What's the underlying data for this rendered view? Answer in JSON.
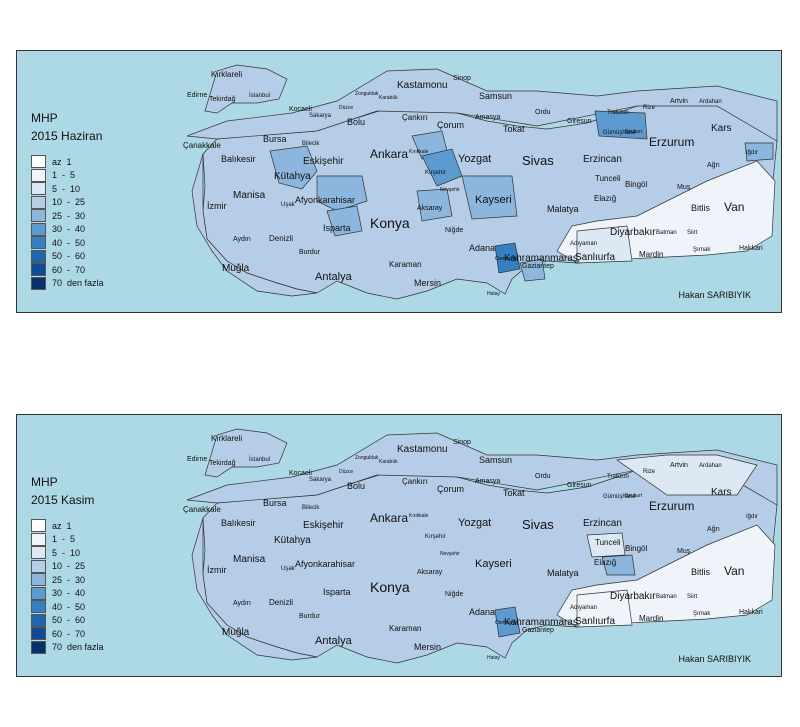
{
  "maps": [
    {
      "title": "MHP",
      "subtitle": "2015 Haziran",
      "highlights": [
        {
          "name": "Kırşehir",
          "class": "30 - 40"
        },
        {
          "name": "Gümüşhane",
          "class": "30 - 40"
        },
        {
          "name": "Bayburt",
          "class": "30 - 40"
        },
        {
          "name": "Osmaniye",
          "class": "40 - 50"
        },
        {
          "name": "Kırıkkale",
          "class": "25 - 30"
        },
        {
          "name": "Aksaray",
          "class": "25 - 30"
        },
        {
          "name": "Kütahya",
          "class": "25 - 30"
        },
        {
          "name": "Afyonkarahisar",
          "class": "25 - 30"
        },
        {
          "name": "Isparta",
          "class": "25 - 30"
        },
        {
          "name": "Kayseri",
          "class": "25 - 30"
        },
        {
          "name": "Iğdır",
          "class": "25 - 30"
        },
        {
          "name": "Gaziantep",
          "class": "25 - 30"
        }
      ]
    },
    {
      "title": "MHP",
      "subtitle": "2015 Kasim",
      "highlights": [
        {
          "name": "Osmaniye",
          "class": "30 - 40"
        },
        {
          "name": "Elazığ",
          "class": "25 - 30"
        },
        {
          "name": "Kastamonu",
          "class": "10 - 25"
        }
      ]
    }
  ],
  "legend": {
    "items": [
      {
        "label": "az  1",
        "color": "#ffffff"
      },
      {
        "label": "1  -  5",
        "color": "#f1f5fb"
      },
      {
        "label": "5  -  10",
        "color": "#dce8f4"
      },
      {
        "label": "10  -  25",
        "color": "#b5cde6"
      },
      {
        "label": "25  -  30",
        "color": "#8db6de"
      },
      {
        "label": "30  -  40",
        "color": "#5b9bd0"
      },
      {
        "label": "40  -  50",
        "color": "#3580c2"
      },
      {
        "label": "50  -  60",
        "color": "#1f66ad"
      },
      {
        "label": "60  -  70",
        "color": "#0f4a95"
      },
      {
        "label": "70  den fazla",
        "color": "#08306b"
      }
    ]
  },
  "author": "Hakan SARIBIYIK",
  "labels": {
    "big": [
      "Kastamonu",
      "Ankara",
      "Yozgat",
      "Sivas",
      "Erzurum",
      "Konya",
      "Kayseri",
      "Van"
    ],
    "medium": [
      "Çorum",
      "Samsun",
      "Eskişehir",
      "Bursa",
      "Balıkesir",
      "Manisa",
      "Kütahya",
      "Afyonkarahisar",
      "Isparta",
      "Antalya",
      "Muğla",
      "Erzincan",
      "Malatya",
      "Diyarbakır",
      "Şanlıurfa",
      "Adana",
      "Kahramanmaraş",
      "Bitlis",
      "Kars",
      "Mersin",
      "Karaman",
      "İzmir"
    ],
    "small": [
      "Kırklareli",
      "Edirne",
      "Tekirdağ",
      "İstanbul",
      "Çanakkale",
      "Bilecik",
      "Sakarya",
      "Düzce",
      "Bolu",
      "Zonguldak",
      "Karabük",
      "Bartın",
      "Çankırı",
      "Sinop",
      "Amasya",
      "Tokat",
      "Ordu",
      "Giresun",
      "Trabzon",
      "Rize",
      "Artvin",
      "Ardahan",
      "Gümüşhane",
      "Bayburt",
      "Iğdır",
      "Ağrı",
      "Tunceli",
      "Bingöl",
      "Muş",
      "Elazığ",
      "Adıyaman",
      "Batman",
      "Siirt",
      "Şırnak",
      "Hakkari",
      "Mardin",
      "Gaziantep",
      "Osmaniye",
      "Hatay",
      "Niğde",
      "Nevşehir",
      "Aksaray",
      "Kırşehir",
      "Kırıkkale",
      "Uşak",
      "Denizli",
      "Burdur",
      "Aydın",
      "Kocaeli",
      "Yalova"
    ]
  }
}
